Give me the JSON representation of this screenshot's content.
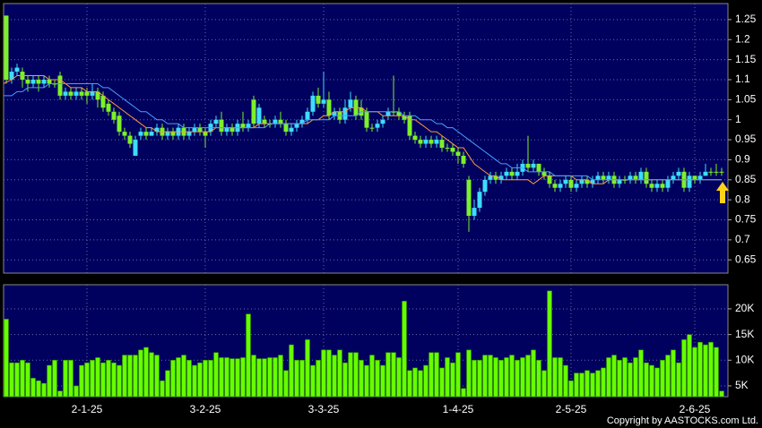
{
  "chart_data": [
    {
      "type": "candlestick",
      "open": [
        1.26,
        1.1,
        1.12,
        1.12,
        1.1,
        1.09,
        1.1,
        1.09,
        1.1,
        1.09,
        1.11,
        1.06,
        1.07,
        1.06,
        1.07,
        1.07,
        1.06,
        1.07,
        1.06,
        1.04,
        1.02,
        1.01,
        0.97,
        0.96,
        0.91,
        0.96,
        0.97,
        0.96,
        0.97,
        0.98,
        0.96,
        0.97,
        0.96,
        0.98,
        0.96,
        0.97,
        0.98,
        0.97,
        0.97,
        0.99,
        1.0,
        0.97,
        0.98,
        0.97,
        0.99,
        0.98,
        1.05,
        0.99,
        1.0,
        0.99,
        0.99,
        1.0,
        0.99,
        0.97,
        0.98,
        0.99,
        1.0,
        1.02,
        1.06,
        1.04,
        1.05,
        1.01,
        1.02,
        1.0,
        1.03,
        1.05,
        1.03,
        1.02,
        0.98,
        0.98,
        0.99,
        1.01,
        1.02,
        1.02,
        1.01,
        1.01,
        0.96,
        0.95,
        0.94,
        0.95,
        0.94,
        0.95,
        0.93,
        0.93,
        0.92,
        0.91,
        0.85,
        0.76,
        0.78,
        0.82,
        0.85,
        0.86,
        0.85,
        0.86,
        0.87,
        0.86,
        0.87,
        0.89,
        0.88,
        0.89,
        0.87,
        0.86,
        0.84,
        0.83,
        0.84,
        0.85,
        0.83,
        0.84,
        0.85,
        0.84,
        0.85,
        0.86,
        0.85,
        0.86,
        0.84,
        0.85,
        0.85,
        0.86,
        0.85,
        0.87,
        0.84,
        0.83,
        0.84,
        0.83,
        0.85,
        0.86,
        0.87,
        0.83,
        0.86,
        0.85,
        0.86,
        0.87,
        0.87,
        0.87
      ],
      "high": [
        1.26,
        1.13,
        1.14,
        1.13,
        1.11,
        1.11,
        1.11,
        1.11,
        1.11,
        1.1,
        1.12,
        1.08,
        1.08,
        1.08,
        1.08,
        1.08,
        1.09,
        1.08,
        1.07,
        1.05,
        1.03,
        1.02,
        0.98,
        0.97,
        0.96,
        0.98,
        0.98,
        0.98,
        0.99,
        0.99,
        0.98,
        0.98,
        0.99,
        0.99,
        0.98,
        0.99,
        0.99,
        0.98,
        1.0,
        1.01,
        1.02,
        0.99,
        0.99,
        1.0,
        1.02,
        1.0,
        1.06,
        1.04,
        1.01,
        1.0,
        1.01,
        1.02,
        1.0,
        0.99,
        1.0,
        1.01,
        1.03,
        1.07,
        1.08,
        1.12,
        1.07,
        1.03,
        1.03,
        1.05,
        1.07,
        1.06,
        1.05,
        1.03,
        0.99,
        1.0,
        1.01,
        1.03,
        1.11,
        1.03,
        1.02,
        1.02,
        0.97,
        0.96,
        0.96,
        0.96,
        0.96,
        0.96,
        0.94,
        0.94,
        0.93,
        0.92,
        0.86,
        0.8,
        0.83,
        0.86,
        0.87,
        0.87,
        0.87,
        0.88,
        0.88,
        0.89,
        0.9,
        0.96,
        0.9,
        0.89,
        0.88,
        0.87,
        0.85,
        0.85,
        0.86,
        0.86,
        0.85,
        0.86,
        0.86,
        0.86,
        0.87,
        0.87,
        0.87,
        0.87,
        0.86,
        0.86,
        0.87,
        0.87,
        0.88,
        0.88,
        0.85,
        0.85,
        0.85,
        0.86,
        0.87,
        0.88,
        0.88,
        0.87,
        0.86,
        0.87,
        0.89,
        0.88,
        0.89,
        0.88
      ],
      "low": [
        1.09,
        1.09,
        1.11,
        1.08,
        1.07,
        1.08,
        1.07,
        1.08,
        1.08,
        1.08,
        1.05,
        1.05,
        1.05,
        1.05,
        1.05,
        1.04,
        1.05,
        1.03,
        1.02,
        1.01,
        0.99,
        0.96,
        0.95,
        0.93,
        0.91,
        0.95,
        0.95,
        0.96,
        0.96,
        0.95,
        0.95,
        0.95,
        0.95,
        0.95,
        0.95,
        0.96,
        0.96,
        0.93,
        0.96,
        0.98,
        0.96,
        0.96,
        0.96,
        0.96,
        0.97,
        0.97,
        0.98,
        0.98,
        0.98,
        0.98,
        0.98,
        0.98,
        0.96,
        0.96,
        0.97,
        0.98,
        0.99,
        1.01,
        1.03,
        1.03,
        1.0,
        1.0,
        0.99,
        0.99,
        1.02,
        1.0,
        1.0,
        0.97,
        0.97,
        0.97,
        0.98,
        1.0,
        1.01,
        1.0,
        0.99,
        0.95,
        0.94,
        0.93,
        0.93,
        0.93,
        0.93,
        0.92,
        0.92,
        0.91,
        0.89,
        0.88,
        0.72,
        0.75,
        0.77,
        0.81,
        0.84,
        0.84,
        0.84,
        0.85,
        0.85,
        0.85,
        0.86,
        0.87,
        0.87,
        0.86,
        0.85,
        0.83,
        0.82,
        0.82,
        0.83,
        0.82,
        0.82,
        0.83,
        0.83,
        0.83,
        0.84,
        0.84,
        0.84,
        0.83,
        0.83,
        0.84,
        0.84,
        0.84,
        0.84,
        0.83,
        0.82,
        0.82,
        0.82,
        0.82,
        0.84,
        0.85,
        0.82,
        0.82,
        0.84,
        0.84,
        0.86,
        0.86,
        0.86,
        0.86
      ],
      "close": [
        1.1,
        1.12,
        1.13,
        1.1,
        1.09,
        1.1,
        1.09,
        1.1,
        1.09,
        1.09,
        1.06,
        1.07,
        1.06,
        1.07,
        1.06,
        1.06,
        1.07,
        1.05,
        1.03,
        1.02,
        1.0,
        0.97,
        0.96,
        0.94,
        0.95,
        0.97,
        0.96,
        0.97,
        0.98,
        0.96,
        0.97,
        0.96,
        0.98,
        0.96,
        0.97,
        0.98,
        0.97,
        0.96,
        0.99,
        1.0,
        0.97,
        0.98,
        0.97,
        0.99,
        0.98,
        0.99,
        0.99,
        1.03,
        0.99,
        0.99,
        1.0,
        0.99,
        0.97,
        0.98,
        0.99,
        1.0,
        1.02,
        1.06,
        1.04,
        1.05,
        1.01,
        1.02,
        1.0,
        1.03,
        1.05,
        1.01,
        1.01,
        0.98,
        0.98,
        0.99,
        1.0,
        1.02,
        1.02,
        1.01,
        1.0,
        0.96,
        0.95,
        0.94,
        0.95,
        0.94,
        0.95,
        0.93,
        0.93,
        0.92,
        0.91,
        0.89,
        0.76,
        0.78,
        0.82,
        0.85,
        0.86,
        0.85,
        0.86,
        0.87,
        0.86,
        0.87,
        0.89,
        0.88,
        0.89,
        0.87,
        0.86,
        0.84,
        0.83,
        0.84,
        0.85,
        0.83,
        0.84,
        0.85,
        0.84,
        0.85,
        0.86,
        0.85,
        0.86,
        0.84,
        0.85,
        0.85,
        0.86,
        0.85,
        0.87,
        0.84,
        0.83,
        0.84,
        0.83,
        0.85,
        0.86,
        0.87,
        0.83,
        0.86,
        0.85,
        0.86,
        0.87,
        0.87,
        0.87,
        0.87
      ],
      "up_color": "#3ddcff",
      "down_color": "#7ef02a",
      "moving_averages": [
        {
          "color": "#ff9a3c",
          "values": [
            1.09,
            1.1,
            1.11,
            1.11,
            1.11,
            1.11,
            1.11,
            1.11,
            1.1,
            1.1,
            1.1,
            1.09,
            1.08,
            1.08,
            1.08,
            1.07,
            1.07,
            1.07,
            1.06,
            1.05,
            1.04,
            1.03,
            1.02,
            1.01,
            1.0,
            0.99,
            0.98,
            0.98,
            0.97,
            0.97,
            0.97,
            0.97,
            0.97,
            0.97,
            0.97,
            0.97,
            0.97,
            0.97,
            0.97,
            0.98,
            0.98,
            0.98,
            0.98,
            0.98,
            0.98,
            0.98,
            0.98,
            0.99,
            0.99,
            0.99,
            0.99,
            0.99,
            0.99,
            0.99,
            0.99,
            0.99,
            0.99,
            1.0,
            1.0,
            1.01,
            1.01,
            1.02,
            1.02,
            1.02,
            1.03,
            1.03,
            1.03,
            1.02,
            1.02,
            1.02,
            1.01,
            1.01,
            1.01,
            1.01,
            1.01,
            1.0,
            1.0,
            0.99,
            0.98,
            0.97,
            0.97,
            0.96,
            0.95,
            0.94,
            0.93,
            0.93,
            0.91,
            0.89,
            0.88,
            0.87,
            0.86,
            0.86,
            0.85,
            0.85,
            0.85,
            0.85,
            0.85,
            0.85,
            0.84,
            0.85,
            0.86,
            0.86,
            0.86,
            0.86,
            0.86,
            0.86,
            0.85,
            0.85,
            0.85,
            0.84,
            0.84,
            0.84,
            0.85,
            0.85,
            0.85,
            0.85,
            0.85,
            0.85,
            0.85,
            0.85,
            0.85,
            0.85,
            0.85,
            0.85,
            0.85,
            0.85,
            0.85,
            0.85,
            0.85,
            0.85,
            0.85,
            0.85,
            0.85,
            0.85
          ]
        },
        {
          "color": "#4aa0ff",
          "values": [
            1.06,
            1.06,
            1.07,
            1.07,
            1.08,
            1.08,
            1.08,
            1.08,
            1.09,
            1.09,
            1.09,
            1.09,
            1.09,
            1.09,
            1.09,
            1.09,
            1.09,
            1.09,
            1.08,
            1.08,
            1.07,
            1.06,
            1.05,
            1.04,
            1.03,
            1.02,
            1.02,
            1.01,
            1.0,
            1.0,
            0.99,
            0.99,
            0.99,
            0.98,
            0.98,
            0.98,
            0.98,
            0.98,
            0.98,
            0.98,
            0.98,
            0.98,
            0.98,
            0.98,
            0.98,
            0.98,
            0.98,
            0.98,
            0.98,
            0.99,
            0.99,
            0.99,
            0.99,
            0.99,
            0.99,
            0.99,
            1.0,
            1.0,
            1.0,
            1.0,
            1.0,
            1.01,
            1.01,
            1.01,
            1.01,
            1.01,
            1.02,
            1.02,
            1.02,
            1.02,
            1.02,
            1.02,
            1.02,
            1.02,
            1.01,
            1.01,
            1.01,
            1.0,
            1.0,
            1.0,
            0.99,
            0.99,
            0.98,
            0.98,
            0.97,
            0.96,
            0.95,
            0.94,
            0.93,
            0.92,
            0.91,
            0.9,
            0.89,
            0.89,
            0.88,
            0.88,
            0.88,
            0.87,
            0.87,
            0.87,
            0.87,
            0.87,
            0.86,
            0.86,
            0.86,
            0.86,
            0.86,
            0.86,
            0.86,
            0.85,
            0.85,
            0.85,
            0.85,
            0.85,
            0.85,
            0.85,
            0.85,
            0.85,
            0.85,
            0.85,
            0.85,
            0.85,
            0.85,
            0.85,
            0.85,
            0.85,
            0.85,
            0.85,
            0.85,
            0.85,
            0.85,
            0.85,
            0.85,
            0.85
          ]
        }
      ],
      "ylim": [
        0.617,
        1.29
      ],
      "yticks": [
        0.65,
        0.7,
        0.75,
        0.8,
        0.85,
        0.9,
        0.95,
        1,
        1.05,
        1.1,
        1.15,
        1.2,
        1.25
      ],
      "grid": true
    },
    {
      "type": "bar",
      "categories": [
        null,
        null,
        null,
        null,
        null,
        null,
        null,
        null,
        null,
        null,
        null,
        null,
        null,
        null,
        null,
        "2-1-25",
        null,
        null,
        null,
        null,
        null,
        null,
        null,
        null,
        null,
        null,
        null,
        null,
        null,
        null,
        null,
        null,
        null,
        null,
        null,
        null,
        null,
        "3-2-25",
        null,
        null,
        null,
        null,
        null,
        null,
        null,
        null,
        null,
        null,
        null,
        null,
        null,
        null,
        null,
        null,
        null,
        null,
        null,
        null,
        null,
        "3-3-25",
        null,
        null,
        null,
        null,
        null,
        null,
        null,
        null,
        null,
        null,
        null,
        null,
        null,
        null,
        null,
        null,
        null,
        null,
        null,
        null,
        null,
        null,
        null,
        null,
        "1-4-25",
        null,
        null,
        null,
        null,
        null,
        null,
        null,
        null,
        null,
        null,
        null,
        null,
        null,
        null,
        null,
        null,
        null,
        null,
        null,
        null,
        "2-5-25",
        null,
        null,
        null,
        null,
        null,
        null,
        null,
        null,
        null,
        null,
        null,
        null,
        null,
        null,
        null,
        null,
        null,
        null,
        null,
        null,
        null,
        null,
        "2-6-25",
        null,
        null,
        null,
        null,
        null
      ],
      "values": [
        18000,
        9500,
        9500,
        10000,
        9500,
        6500,
        6000,
        5500,
        9000,
        10000,
        4000,
        10000,
        10000,
        5000,
        9000,
        9500,
        10000,
        10500,
        9500,
        10000,
        9500,
        9000,
        11000,
        11000,
        11000,
        12000,
        12500,
        11500,
        11000,
        6000,
        8000,
        10000,
        10500,
        11000,
        10000,
        9000,
        9500,
        10000,
        10000,
        11500,
        10500,
        10500,
        10300,
        10300,
        10500,
        19000,
        11000,
        10300,
        10300,
        10500,
        10500,
        11000,
        8000,
        13000,
        10000,
        10000,
        14000,
        9000,
        10000,
        12000,
        12000,
        11000,
        12000,
        9500,
        11500,
        11500,
        10000,
        9000,
        11000,
        10000,
        9000,
        11500,
        11500,
        10500,
        21500,
        8000,
        8500,
        8000,
        9000,
        11500,
        11500,
        8500,
        10500,
        9500,
        11500,
        4500,
        12000,
        10000,
        10000,
        11000,
        11000,
        10500,
        10000,
        10500,
        11000,
        10000,
        10500,
        11000,
        12000,
        10000,
        8000,
        23500,
        10500,
        10500,
        9000,
        6000,
        7500,
        7500,
        8000,
        7500,
        8000,
        8500,
        10500,
        11000,
        10000,
        10500,
        9500,
        10500,
        12000,
        9500,
        9000,
        8500,
        10000,
        11000,
        12000,
        9500,
        14000,
        15000,
        12500,
        13500,
        13000,
        13500,
        12500,
        4000
      ],
      "color": "#66ff00",
      "ylim": [
        2900,
        24700
      ],
      "yticks": [
        {
          "value": 5000,
          "label": "5K"
        },
        {
          "value": 10000,
          "label": "10K"
        },
        {
          "value": 15000,
          "label": "15K"
        },
        {
          "value": 20000,
          "label": "20K"
        }
      ],
      "grid": true
    }
  ],
  "copyright": "Copyright by AASTOCKS.com Ltd."
}
